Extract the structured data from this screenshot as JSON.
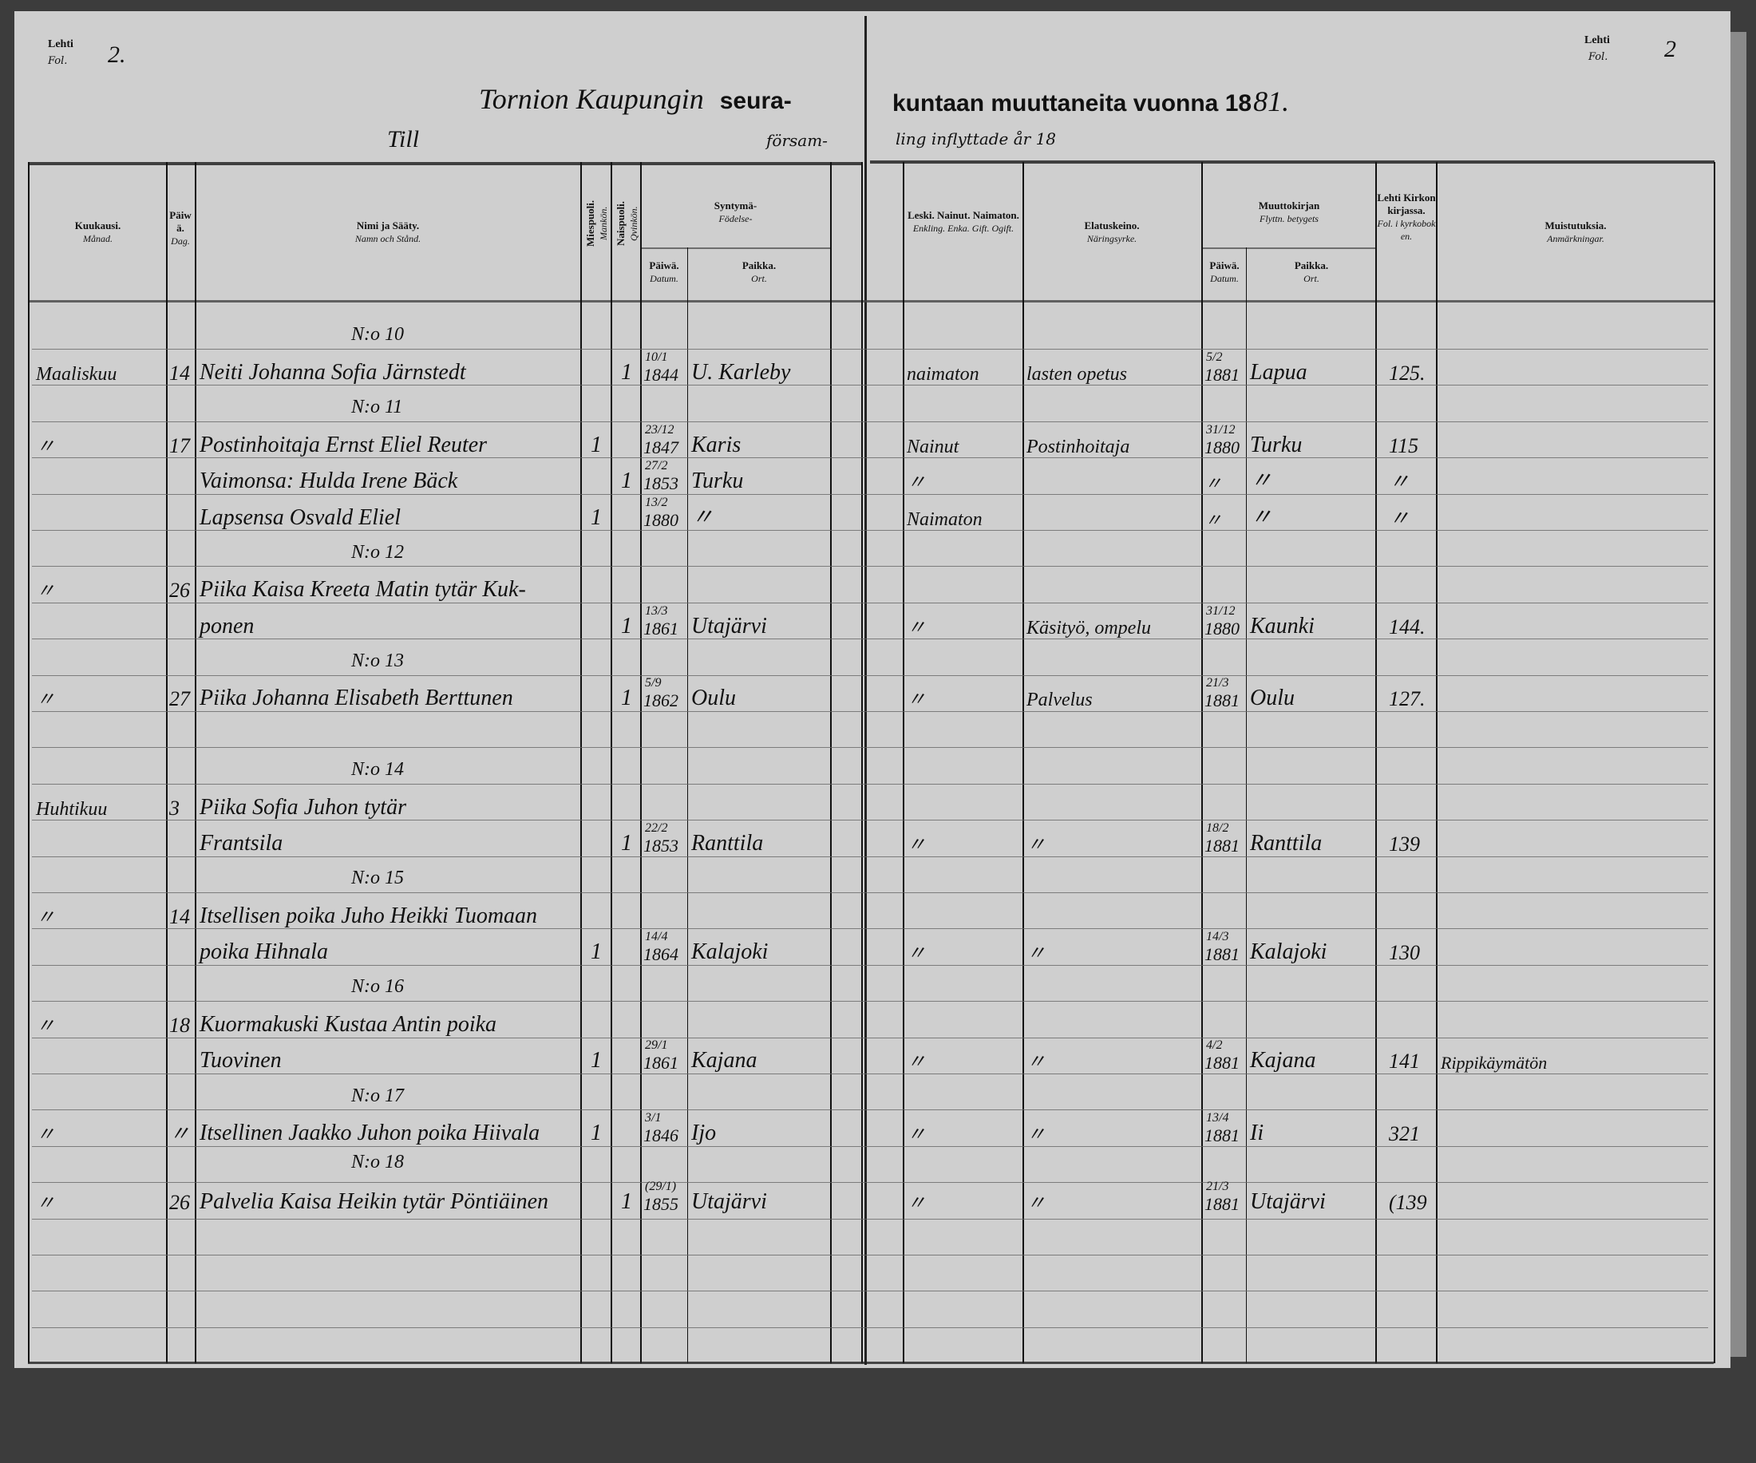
{
  "folio": {
    "left_label_1": "Lehti",
    "left_label_2": "Fol.",
    "left_number": "2.",
    "right_label_1": "Lehti",
    "right_label_2": "Fol.",
    "right_number": "2"
  },
  "title": {
    "handwritten_place": "Tornion Kaupungin",
    "printed_left": "seura-",
    "printed_right": "kuntaan muuttaneita vuonna 18",
    "handwritten_year": "81.",
    "sv_left_hand": "Till",
    "sv_left_print": "försam-",
    "sv_right_print": "ling inflyttade år 18"
  },
  "columns": {
    "month": {
      "fi": "Kuukausi.",
      "sv": "Månad."
    },
    "day": {
      "fi": "Päiwä.",
      "sv": "Dag."
    },
    "name": {
      "fi": "Nimi ja Sääty.",
      "sv": "Namn och Stånd."
    },
    "male": {
      "fi": "Miespuoli.",
      "sv": "Mankön."
    },
    "female": {
      "fi": "Naispuoli.",
      "sv": "Qvinkön."
    },
    "birth": {
      "fi": "Syntymä-",
      "sv": "Födelse-"
    },
    "birth_date": {
      "fi": "Päiwä.",
      "sv": "Datum."
    },
    "birth_place": {
      "fi": "Paikka.",
      "sv": "Ort."
    },
    "status": {
      "fi": "Leski. Nainut. Naimaton.",
      "sv": "Enkling. Enka. Gift. Ogift."
    },
    "occupation": {
      "fi": "Elatuskeino.",
      "sv": "Näringsyrke."
    },
    "moving_cert": {
      "fi": "Muuttokirjan",
      "sv": "Flyttn. betygets"
    },
    "cert_date": {
      "fi": "Päiwä.",
      "sv": "Datum."
    },
    "cert_place": {
      "fi": "Paikka.",
      "sv": "Ort."
    },
    "folio_col": {
      "fi": "Lehti Kirkonkirjassa.",
      "sv": "Fol. i kyrkoboken."
    },
    "notes": {
      "fi": "Muistutuksia.",
      "sv": "Anmärkningar."
    }
  },
  "entries": [
    {
      "no": "N:o 10",
      "lines": [
        {
          "month": "Maaliskuu",
          "day": "14",
          "name": "Neiti Johanna Sofia Järnstedt",
          "male": "",
          "female": "1",
          "bdate_dm": "10/1",
          "bdate_y": "1844",
          "bplace": "U. Karleby",
          "status": "naimaton",
          "occ": "lasten opetus",
          "mdate_dm": "5/2",
          "mdate_y": "1881",
          "mplace": "Lapua",
          "fol": "125.",
          "notes": ""
        }
      ]
    },
    {
      "no": "N:o 11",
      "lines": [
        {
          "month": "〃",
          "day": "17",
          "name": "Postinhoitaja Ernst Eliel Reuter",
          "male": "1",
          "female": "",
          "bdate_dm": "23/12",
          "bdate_y": "1847",
          "bplace": "Karis",
          "status": "Nainut",
          "occ": "Postinhoitaja",
          "mdate_dm": "31/12",
          "mdate_y": "1880",
          "mplace": "Turku",
          "fol": "115",
          "notes": ""
        },
        {
          "month": "",
          "day": "",
          "name": "Vaimonsa: Hulda Irene Bäck",
          "male": "",
          "female": "1",
          "bdate_dm": "27/2",
          "bdate_y": "1853",
          "bplace": "Turku",
          "status": "〃",
          "occ": "",
          "mdate_dm": "",
          "mdate_y": "〃",
          "mplace": "〃",
          "fol": "〃",
          "notes": ""
        },
        {
          "month": "",
          "day": "",
          "name": "Lapsensa Osvald Eliel",
          "male": "1",
          "female": "",
          "bdate_dm": "13/2",
          "bdate_y": "1880",
          "bplace": "〃",
          "status": "Naimaton",
          "occ": "",
          "mdate_dm": "",
          "mdate_y": "〃",
          "mplace": "〃",
          "fol": "〃",
          "notes": ""
        }
      ]
    },
    {
      "no": "N:o 12",
      "lines": [
        {
          "month": "〃",
          "day": "26",
          "name": "Piika Kaisa Kreeta Matin tytär Kuk-",
          "male": "",
          "female": "",
          "bdate_dm": "",
          "bdate_y": "",
          "bplace": "",
          "status": "",
          "occ": "",
          "mdate_dm": "",
          "mdate_y": "",
          "mplace": "",
          "fol": "",
          "notes": ""
        },
        {
          "month": "",
          "day": "",
          "name": "ponen",
          "male": "",
          "female": "1",
          "bdate_dm": "13/3",
          "bdate_y": "1861",
          "bplace": "Utajärvi",
          "status": "〃",
          "occ": "Käsityö, ompelu",
          "mdate_dm": "31/12",
          "mdate_y": "1880",
          "mplace": "Kaunki",
          "fol": "144.",
          "notes": ""
        }
      ]
    },
    {
      "no": "N:o 13",
      "lines": [
        {
          "month": "〃",
          "day": "27",
          "name": "Piika Johanna Elisabeth Berttunen",
          "male": "",
          "female": "1",
          "bdate_dm": "5/9",
          "bdate_y": "1862",
          "bplace": "Oulu",
          "status": "〃",
          "occ": "Palvelus",
          "mdate_dm": "21/3",
          "mdate_y": "1881",
          "mplace": "Oulu",
          "fol": "127.",
          "notes": ""
        }
      ]
    },
    {
      "no": "N:o 14",
      "lines": [
        {
          "month": "Huhtikuu",
          "day": "3",
          "name": "Piika Sofia Juhon tytär",
          "male": "",
          "female": "",
          "bdate_dm": "",
          "bdate_y": "",
          "bplace": "",
          "status": "",
          "occ": "",
          "mdate_dm": "",
          "mdate_y": "",
          "mplace": "",
          "fol": "",
          "notes": ""
        },
        {
          "month": "",
          "day": "",
          "name": "Frantsila",
          "male": "",
          "female": "1",
          "bdate_dm": "22/2",
          "bdate_y": "1853",
          "bplace": "Ranttila",
          "status": "〃",
          "occ": "〃",
          "mdate_dm": "18/2",
          "mdate_y": "1881",
          "mplace": "Ranttila",
          "fol": "139",
          "notes": ""
        }
      ]
    },
    {
      "no": "N:o 15",
      "lines": [
        {
          "month": "〃",
          "day": "14",
          "name": "Itsellisen poika Juho Heikki Tuomaan",
          "male": "",
          "female": "",
          "bdate_dm": "",
          "bdate_y": "",
          "bplace": "",
          "status": "",
          "occ": "",
          "mdate_dm": "",
          "mdate_y": "",
          "mplace": "",
          "fol": "",
          "notes": ""
        },
        {
          "month": "",
          "day": "",
          "name": "poika Hihnala",
          "male": "1",
          "female": "",
          "bdate_dm": "14/4",
          "bdate_y": "1864",
          "bplace": "Kalajoki",
          "status": "〃",
          "occ": "〃",
          "mdate_dm": "14/3",
          "mdate_y": "1881",
          "mplace": "Kalajoki",
          "fol": "130",
          "notes": ""
        }
      ]
    },
    {
      "no": "N:o 16",
      "lines": [
        {
          "month": "〃",
          "day": "18",
          "name": "Kuormakuski Kustaa Antin poika",
          "male": "",
          "female": "",
          "bdate_dm": "",
          "bdate_y": "",
          "bplace": "",
          "status": "",
          "occ": "",
          "mdate_dm": "",
          "mdate_y": "",
          "mplace": "",
          "fol": "",
          "notes": ""
        },
        {
          "month": "",
          "day": "",
          "name": "Tuovinen",
          "male": "1",
          "female": "",
          "bdate_dm": "29/1",
          "bdate_y": "1861",
          "bplace": "Kajana",
          "status": "〃",
          "occ": "〃",
          "mdate_dm": "4/2",
          "mdate_y": "1881",
          "mplace": "Kajana",
          "fol": "141",
          "notes": "Rippikäymätön"
        }
      ]
    },
    {
      "no": "N:o 17",
      "lines": [
        {
          "month": "〃",
          "day": "〃",
          "name": "Itsellinen Jaakko Juhon poika Hiivala",
          "male": "1",
          "female": "",
          "bdate_dm": "3/1",
          "bdate_y": "1846",
          "bplace": "Ijo",
          "status": "〃",
          "occ": "〃",
          "mdate_dm": "13/4",
          "mdate_y": "1881",
          "mplace": "Ii",
          "fol": "321",
          "notes": ""
        }
      ]
    },
    {
      "no": "N:o 18",
      "lines": [
        {
          "month": "〃",
          "day": "26",
          "name": "Palvelia Kaisa Heikin tytär Pöntiäinen",
          "male": "",
          "female": "1",
          "bdate_dm": "(29/1)",
          "bdate_y": "1855",
          "bplace": "Utajärvi",
          "status": "〃",
          "occ": "〃",
          "mdate_dm": "21/3",
          "mdate_y": "1881",
          "mplace": "Utajärvi",
          "fol": "(139",
          "notes": ""
        }
      ]
    }
  ]
}
